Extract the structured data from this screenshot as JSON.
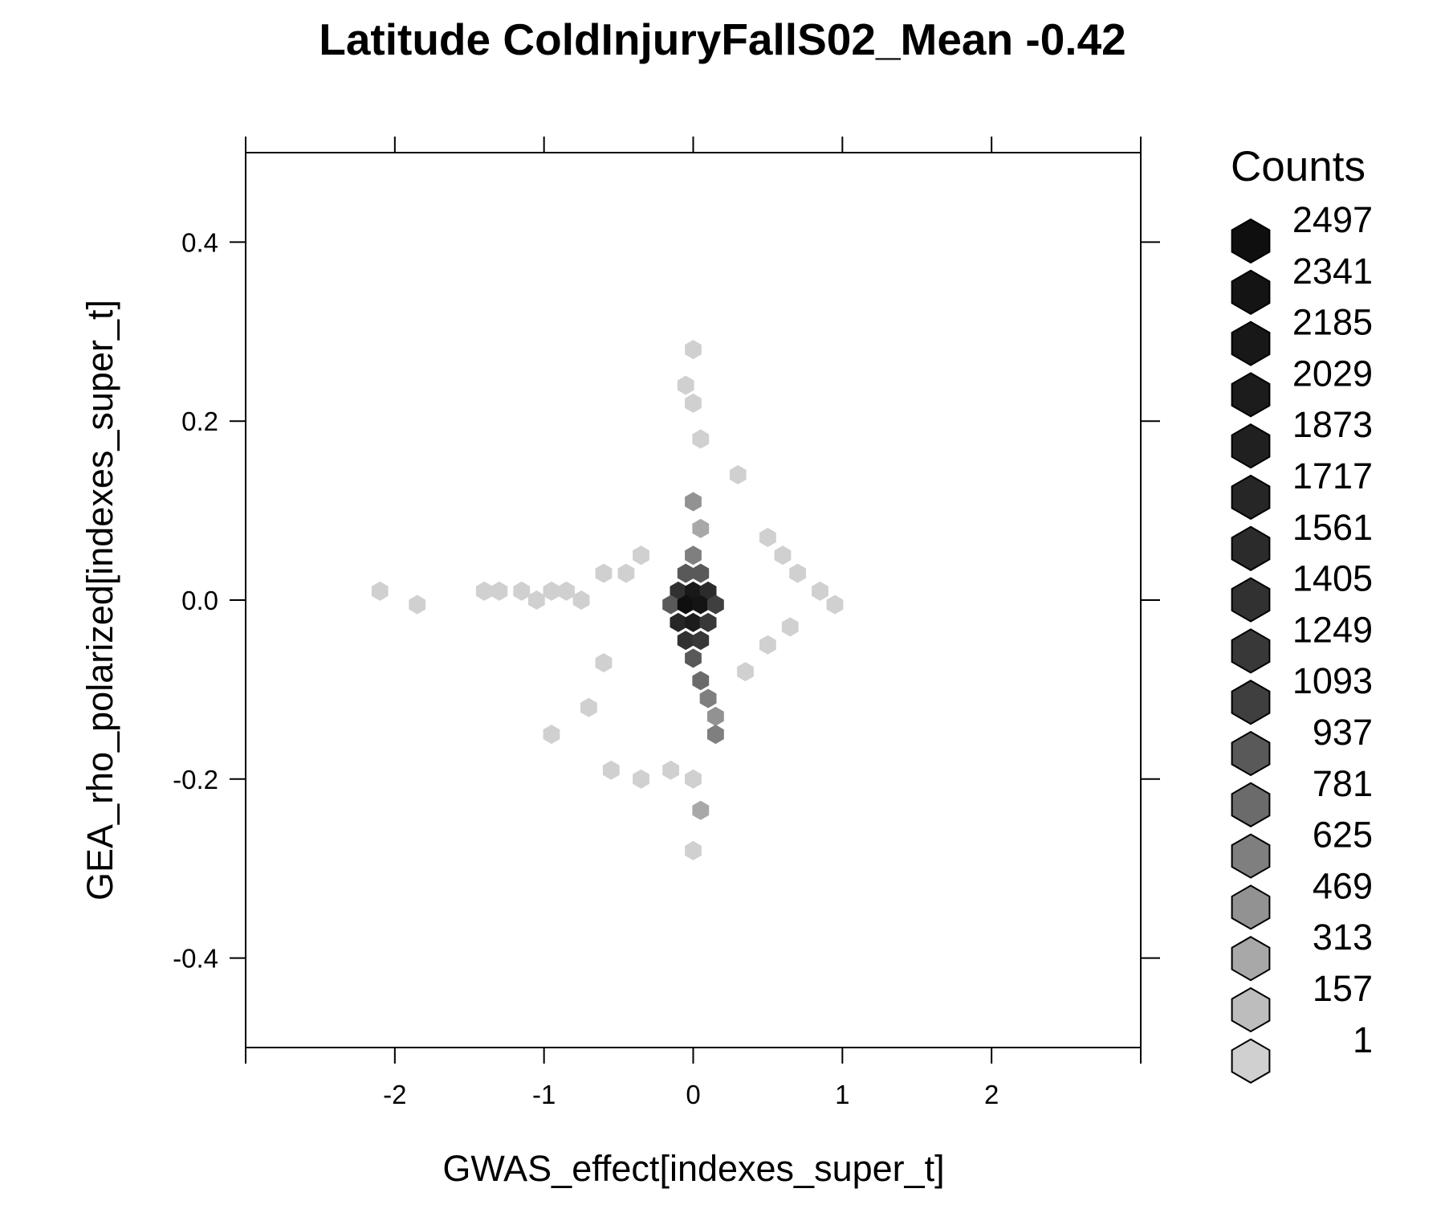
{
  "chart_data": {
    "type": "hexbin",
    "title": "Latitude ColdInjuryFallS02_Mean -0.42",
    "xlabel": "GWAS_effect[indexes_super_t]",
    "ylabel": "GEA_rho_polarized[indexes_super_t]",
    "xlim": [
      -3.0,
      3.0
    ],
    "ylim": [
      -0.5,
      0.5
    ],
    "xticks": [
      -2,
      -1,
      0,
      1,
      2
    ],
    "xtick_labels": [
      "-2",
      "-1",
      "0",
      "1",
      "2"
    ],
    "yticks": [
      -0.4,
      -0.2,
      0.0,
      0.2,
      0.4
    ],
    "ytick_labels": [
      "-0.4",
      "-0.2",
      "0.0",
      "0.2",
      "0.4"
    ],
    "grid": false,
    "legend": {
      "title": "Counts",
      "position": "right",
      "labels": [
        "2497",
        "2341",
        "2185",
        "2029",
        "1873",
        "1717",
        "1561",
        "1405",
        "1249",
        "1093",
        "937",
        "781",
        "625",
        "469",
        "313",
        "157",
        "1"
      ],
      "colors": [
        "#0f0f0f",
        "#141414",
        "#181818",
        "#1c1c1c",
        "#202020",
        "#262626",
        "#2b2b2b",
        "#313131",
        "#383838",
        "#3f3f3f",
        "#595959",
        "#6b6b6b",
        "#7f7f7f",
        "#929292",
        "#a8a8a8",
        "#bdbdbd",
        "#d0d0d0"
      ]
    },
    "hex_cells": [
      {
        "x": -2.1,
        "y": 0.01,
        "count": 1
      },
      {
        "x": -1.85,
        "y": -0.005,
        "count": 1
      },
      {
        "x": -1.4,
        "y": 0.01,
        "count": 1
      },
      {
        "x": -1.3,
        "y": 0.01,
        "count": 1
      },
      {
        "x": -1.15,
        "y": 0.01,
        "count": 1
      },
      {
        "x": -1.05,
        "y": 0.0,
        "count": 1
      },
      {
        "x": -0.95,
        "y": 0.01,
        "count": 1
      },
      {
        "x": -0.85,
        "y": 0.01,
        "count": 1
      },
      {
        "x": -0.75,
        "y": 0.0,
        "count": 1
      },
      {
        "x": -0.6,
        "y": 0.03,
        "count": 1
      },
      {
        "x": -0.45,
        "y": 0.03,
        "count": 1
      },
      {
        "x": -0.35,
        "y": 0.05,
        "count": 1
      },
      {
        "x": -0.6,
        "y": -0.07,
        "count": 1
      },
      {
        "x": -0.7,
        "y": -0.12,
        "count": 1
      },
      {
        "x": -0.95,
        "y": -0.15,
        "count": 1
      },
      {
        "x": -0.55,
        "y": -0.19,
        "count": 1
      },
      {
        "x": -0.35,
        "y": -0.2,
        "count": 1
      },
      {
        "x": -0.15,
        "y": -0.19,
        "count": 1
      },
      {
        "x": 0.0,
        "y": 0.28,
        "count": 1
      },
      {
        "x": -0.05,
        "y": 0.24,
        "count": 1
      },
      {
        "x": 0.0,
        "y": 0.22,
        "count": 1
      },
      {
        "x": 0.05,
        "y": 0.18,
        "count": 1
      },
      {
        "x": 0.3,
        "y": 0.14,
        "count": 1
      },
      {
        "x": 0.5,
        "y": 0.07,
        "count": 1
      },
      {
        "x": 0.6,
        "y": 0.05,
        "count": 1
      },
      {
        "x": 0.7,
        "y": 0.03,
        "count": 1
      },
      {
        "x": 0.85,
        "y": 0.01,
        "count": 1
      },
      {
        "x": 0.95,
        "y": -0.005,
        "count": 1
      },
      {
        "x": 0.65,
        "y": -0.03,
        "count": 1
      },
      {
        "x": 0.5,
        "y": -0.05,
        "count": 1
      },
      {
        "x": 0.35,
        "y": -0.08,
        "count": 1
      },
      {
        "x": 0.0,
        "y": -0.2,
        "count": 1
      },
      {
        "x": 0.0,
        "y": -0.28,
        "count": 1
      },
      {
        "x": 0.05,
        "y": -0.235,
        "count": 313
      },
      {
        "x": 0.0,
        "y": 0.11,
        "count": 469
      },
      {
        "x": 0.05,
        "y": 0.08,
        "count": 313
      },
      {
        "x": 0.0,
        "y": 0.05,
        "count": 625
      },
      {
        "x": -0.05,
        "y": 0.03,
        "count": 937
      },
      {
        "x": 0.05,
        "y": 0.03,
        "count": 937
      },
      {
        "x": -0.1,
        "y": 0.01,
        "count": 1405
      },
      {
        "x": 0.0,
        "y": 0.01,
        "count": 2185
      },
      {
        "x": 0.1,
        "y": 0.01,
        "count": 1561
      },
      {
        "x": -0.15,
        "y": -0.005,
        "count": 937
      },
      {
        "x": -0.05,
        "y": -0.005,
        "count": 2497
      },
      {
        "x": 0.05,
        "y": -0.005,
        "count": 2341
      },
      {
        "x": 0.15,
        "y": -0.005,
        "count": 1093
      },
      {
        "x": -0.1,
        "y": -0.025,
        "count": 1717
      },
      {
        "x": 0.0,
        "y": -0.025,
        "count": 2029
      },
      {
        "x": 0.1,
        "y": -0.025,
        "count": 1249
      },
      {
        "x": -0.05,
        "y": -0.045,
        "count": 1405
      },
      {
        "x": 0.05,
        "y": -0.045,
        "count": 1249
      },
      {
        "x": 0.0,
        "y": -0.065,
        "count": 937
      },
      {
        "x": 0.05,
        "y": -0.09,
        "count": 781
      },
      {
        "x": 0.1,
        "y": -0.11,
        "count": 625
      },
      {
        "x": 0.15,
        "y": -0.13,
        "count": 469
      },
      {
        "x": 0.15,
        "y": -0.15,
        "count": 625
      }
    ]
  }
}
